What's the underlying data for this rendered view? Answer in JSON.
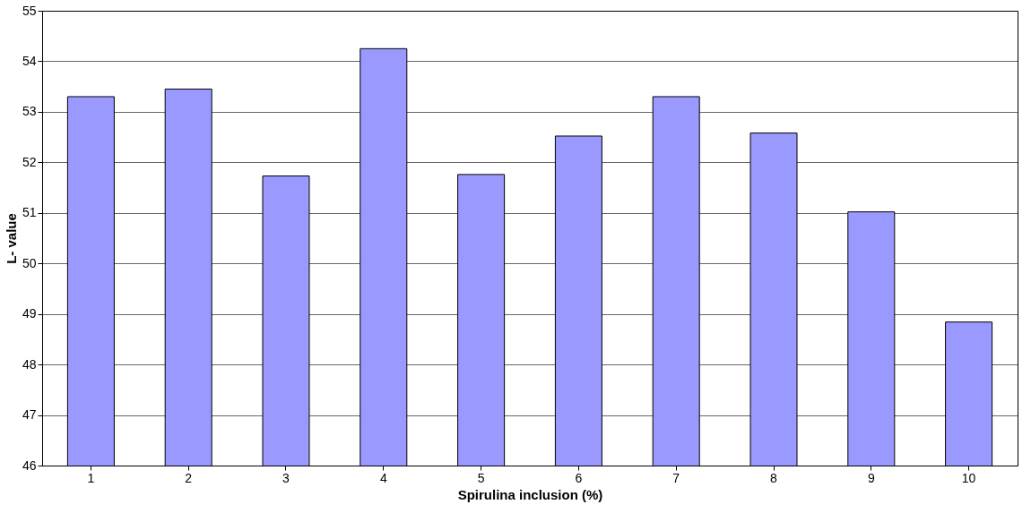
{
  "chart_data": {
    "type": "bar",
    "xlabel": "Spirulina inclusion (%)",
    "ylabel": "L- value",
    "categories": [
      "1",
      "2",
      "3",
      "4",
      "5",
      "6",
      "7",
      "8",
      "9",
      "10"
    ],
    "values": [
      53.3,
      53.45,
      51.73,
      54.25,
      51.76,
      52.52,
      53.3,
      52.58,
      51.02,
      48.84
    ],
    "color": "#9999ff",
    "ylim": [
      46,
      55
    ],
    "yticks": [
      46,
      47,
      48,
      49,
      50,
      51,
      52,
      53,
      54,
      55
    ],
    "grid": "y"
  }
}
